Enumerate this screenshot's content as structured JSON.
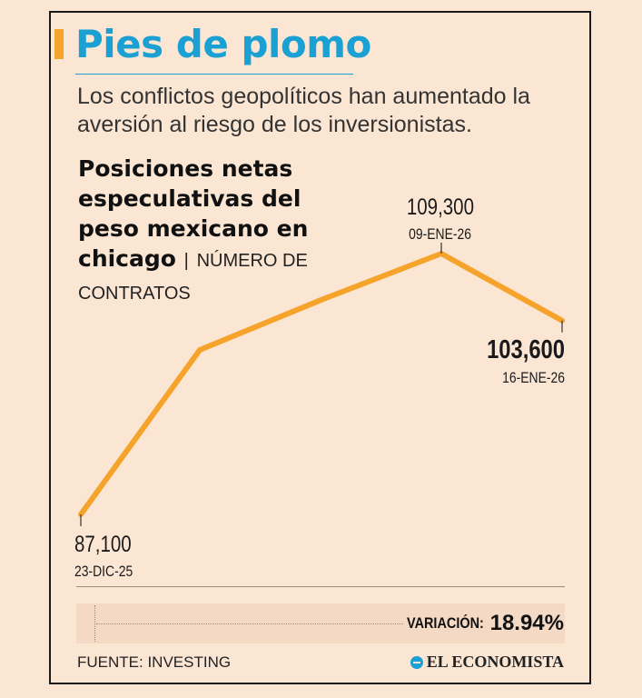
{
  "header": {
    "title": "Pies de plomo",
    "subtitle": "Los conflictos geopolíticos han aumentado la aversión al riesgo de los inversionistas."
  },
  "chart_data": {
    "type": "line",
    "title": "Posiciones netas especulativas del peso mexicano en chicago",
    "unit": "NÚMERO DE CONTRATOS",
    "separator": "|",
    "x": [
      "23-DIC-25",
      "",
      "",
      "09-ENE-26",
      "16-ENE-26"
    ],
    "values": [
      87100,
      101100,
      105400,
      109300,
      103600
    ],
    "ylim": [
      84000,
      112000
    ],
    "line_color": "#f5a32a",
    "annotations": [
      {
        "index": 0,
        "value_label": "87,100",
        "date_label": "23-DIC-25"
      },
      {
        "index": 3,
        "value_label": "109,300",
        "date_label": "09-ENE-26"
      },
      {
        "index": 4,
        "value_label": "103,600",
        "date_label": "16-ENE-26"
      }
    ]
  },
  "variation": {
    "label": "VARIACIÓN:",
    "value": "18.94%"
  },
  "footer": {
    "source": "FUENTE: INVESTING",
    "brand": "EL ECONOMISTA"
  },
  "colors": {
    "background": "#fbe6d4",
    "accent": "#f5a32a",
    "title": "#1aa0d2"
  }
}
